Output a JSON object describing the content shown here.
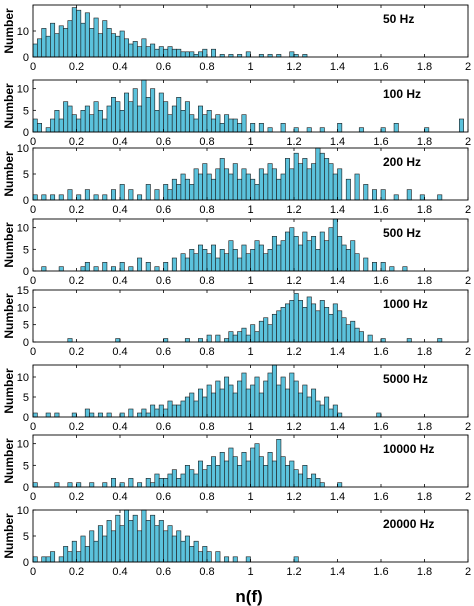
{
  "chart_data": {
    "type": "bar",
    "xlabel": "n(f)",
    "ylabel": "Number",
    "bin_width": 0.02,
    "colors": {
      "bar_fill": "#5bc2dc",
      "bar_edge": "#1a1a1a",
      "frame": "#000000"
    },
    "panels": [
      {
        "title": "50 Hz",
        "ylim": [
          0,
          20
        ],
        "yticks": [
          0,
          10
        ],
        "xlim": [
          0,
          2
        ],
        "xticks": [
          "0",
          "0.2",
          "0.4",
          "0.6",
          "0.8",
          "1",
          "1.2",
          "1.4",
          "1.6",
          "1.8",
          "2"
        ],
        "bin_starts": [
          0.0,
          0.02,
          0.04,
          0.06,
          0.08,
          0.1,
          0.12,
          0.14,
          0.16,
          0.18,
          0.2,
          0.22,
          0.24,
          0.26,
          0.28,
          0.3,
          0.32,
          0.34,
          0.36,
          0.38,
          0.4,
          0.42,
          0.44,
          0.46,
          0.48,
          0.5,
          0.52,
          0.54,
          0.56,
          0.58,
          0.6,
          0.62,
          0.64,
          0.66,
          0.68,
          0.7,
          0.72,
          0.74,
          0.76,
          0.78,
          0.82,
          0.86,
          0.9,
          0.94,
          0.98,
          1.04,
          1.08,
          1.12,
          1.18,
          1.2,
          1.24
        ],
        "counts": [
          5,
          7,
          11,
          8,
          13,
          9,
          12,
          11,
          14,
          19,
          18,
          13,
          17,
          11,
          15,
          9,
          14,
          11,
          9,
          8,
          10,
          7,
          5,
          6,
          4,
          7,
          4,
          5,
          3,
          4,
          3,
          4,
          3,
          3,
          2,
          2,
          2,
          1,
          2,
          3,
          3,
          1,
          1,
          1,
          2,
          1,
          1,
          1,
          2,
          1,
          1
        ]
      },
      {
        "title": "100 Hz",
        "ylim": [
          0,
          12
        ],
        "yticks": [
          0,
          5,
          10
        ],
        "xlim": [
          0,
          2
        ],
        "xticks": [
          "0",
          "0.2",
          "0.4",
          "0.6",
          "0.8",
          "1",
          "1.2",
          "1.4",
          "1.6",
          "1.8",
          "2"
        ],
        "bin_starts": [
          0.0,
          0.02,
          0.06,
          0.08,
          0.1,
          0.12,
          0.14,
          0.16,
          0.18,
          0.2,
          0.22,
          0.24,
          0.26,
          0.28,
          0.3,
          0.32,
          0.34,
          0.36,
          0.38,
          0.4,
          0.42,
          0.44,
          0.46,
          0.48,
          0.5,
          0.52,
          0.54,
          0.56,
          0.58,
          0.6,
          0.62,
          0.64,
          0.66,
          0.68,
          0.7,
          0.72,
          0.74,
          0.76,
          0.78,
          0.8,
          0.82,
          0.84,
          0.86,
          0.88,
          0.9,
          0.92,
          0.94,
          0.96,
          1.0,
          1.04,
          1.08,
          1.14,
          1.2,
          1.26,
          1.32,
          1.4,
          1.5,
          1.6,
          1.66,
          1.8,
          1.96
        ],
        "counts": [
          3,
          2,
          1,
          3,
          5,
          3,
          7,
          6,
          4,
          3,
          5,
          6,
          4,
          7,
          5,
          3,
          6,
          8,
          7,
          5,
          9,
          7,
          10,
          6,
          12,
          8,
          10,
          5,
          9,
          7,
          4,
          6,
          8,
          5,
          7,
          4,
          3,
          6,
          4,
          5,
          3,
          4,
          2,
          4,
          3,
          3,
          2,
          4,
          2,
          2,
          1,
          2,
          1,
          1,
          1,
          2,
          1,
          1,
          2,
          1,
          3
        ]
      },
      {
        "title": "200 Hz",
        "ylim": [
          0,
          10
        ],
        "yticks": [
          0,
          5,
          10
        ],
        "xlim": [
          0,
          2
        ],
        "xticks": [
          "0",
          "0.2",
          "0.4",
          "0.6",
          "0.8",
          "1",
          "1.2",
          "1.4",
          "1.6",
          "1.8",
          "2"
        ],
        "bin_starts": [
          0.0,
          0.04,
          0.08,
          0.12,
          0.16,
          0.2,
          0.24,
          0.28,
          0.32,
          0.36,
          0.4,
          0.44,
          0.48,
          0.52,
          0.56,
          0.6,
          0.62,
          0.64,
          0.66,
          0.68,
          0.7,
          0.72,
          0.74,
          0.76,
          0.78,
          0.8,
          0.82,
          0.84,
          0.86,
          0.88,
          0.9,
          0.92,
          0.94,
          0.96,
          0.98,
          1.0,
          1.02,
          1.04,
          1.06,
          1.08,
          1.1,
          1.12,
          1.14,
          1.16,
          1.18,
          1.2,
          1.22,
          1.24,
          1.26,
          1.28,
          1.3,
          1.32,
          1.34,
          1.36,
          1.38,
          1.4,
          1.44,
          1.48,
          1.52,
          1.56,
          1.6,
          1.66,
          1.72,
          1.78,
          1.86
        ],
        "counts": [
          1,
          1,
          1,
          1,
          2,
          1,
          2,
          1,
          1,
          2,
          3,
          2,
          1,
          3,
          2,
          3,
          2,
          4,
          3,
          5,
          4,
          3,
          6,
          5,
          7,
          5,
          4,
          6,
          8,
          6,
          5,
          7,
          4,
          6,
          5,
          4,
          3,
          6,
          5,
          7,
          6,
          4,
          5,
          8,
          6,
          9,
          7,
          8,
          6,
          7,
          10,
          9,
          8,
          7,
          5,
          6,
          4,
          5,
          3,
          2,
          2,
          1,
          2,
          1,
          1
        ]
      },
      {
        "title": "500 Hz",
        "ylim": [
          0,
          12
        ],
        "yticks": [
          0,
          5,
          10
        ],
        "xlim": [
          0,
          2
        ],
        "xticks": [
          "0",
          "0.2",
          "0.4",
          "0.6",
          "0.8",
          "1",
          "1.2",
          "1.4",
          "1.6",
          "1.8",
          "2"
        ],
        "bin_starts": [
          0.04,
          0.12,
          0.22,
          0.24,
          0.28,
          0.32,
          0.36,
          0.4,
          0.44,
          0.48,
          0.52,
          0.56,
          0.6,
          0.64,
          0.68,
          0.7,
          0.72,
          0.74,
          0.76,
          0.78,
          0.8,
          0.82,
          0.84,
          0.86,
          0.88,
          0.9,
          0.92,
          0.94,
          0.96,
          0.98,
          1.0,
          1.02,
          1.04,
          1.06,
          1.08,
          1.1,
          1.12,
          1.14,
          1.16,
          1.18,
          1.2,
          1.22,
          1.24,
          1.26,
          1.28,
          1.3,
          1.32,
          1.34,
          1.36,
          1.38,
          1.4,
          1.42,
          1.44,
          1.46,
          1.48,
          1.52,
          1.56,
          1.6,
          1.64,
          1.7
        ],
        "counts": [
          1,
          1,
          1,
          2,
          1,
          2,
          1,
          2,
          1,
          3,
          2,
          1,
          2,
          3,
          4,
          3,
          5,
          4,
          6,
          5,
          4,
          6,
          3,
          5,
          4,
          7,
          5,
          3,
          6,
          4,
          5,
          7,
          6,
          4,
          5,
          8,
          6,
          7,
          9,
          10,
          8,
          6,
          9,
          7,
          8,
          5,
          9,
          7,
          10,
          12,
          8,
          6,
          5,
          7,
          4,
          3,
          2,
          2,
          1,
          1
        ]
      },
      {
        "title": "1000 Hz",
        "ylim": [
          0,
          15
        ],
        "yticks": [
          0,
          5,
          10,
          15
        ],
        "xlim": [
          0,
          2
        ],
        "xticks": [
          "0",
          "0.2",
          "0.4",
          "0.6",
          "0.8",
          "1",
          "1.2",
          "1.4",
          "1.6",
          "1.8",
          "2"
        ],
        "bin_starts": [
          0.16,
          0.38,
          0.6,
          0.7,
          0.76,
          0.8,
          0.84,
          0.88,
          0.9,
          0.92,
          0.94,
          0.96,
          0.98,
          1.0,
          1.02,
          1.04,
          1.06,
          1.08,
          1.1,
          1.12,
          1.14,
          1.16,
          1.18,
          1.2,
          1.22,
          1.24,
          1.26,
          1.28,
          1.3,
          1.32,
          1.34,
          1.36,
          1.38,
          1.4,
          1.42,
          1.44,
          1.46,
          1.48,
          1.5,
          1.54,
          1.6,
          1.72,
          1.86
        ],
        "counts": [
          1,
          1,
          1,
          1,
          1,
          2,
          2,
          1,
          3,
          2,
          3,
          4,
          2,
          5,
          3,
          6,
          7,
          5,
          8,
          9,
          10,
          11,
          12,
          14,
          12,
          10,
          13,
          11,
          9,
          12,
          10,
          8,
          11,
          9,
          7,
          5,
          6,
          4,
          3,
          2,
          1,
          1,
          1
        ]
      },
      {
        "title": "5000 Hz",
        "ylim": [
          0,
          13
        ],
        "yticks": [
          0,
          5,
          10
        ],
        "xlim": [
          0,
          2
        ],
        "xticks": [
          "0",
          "0.2",
          "0.4",
          "0.6",
          "0.8",
          "1",
          "1.2",
          "1.4",
          "1.6",
          "1.8",
          "2"
        ],
        "bin_starts": [
          0.0,
          0.06,
          0.1,
          0.18,
          0.24,
          0.26,
          0.3,
          0.34,
          0.4,
          0.44,
          0.48,
          0.5,
          0.52,
          0.54,
          0.56,
          0.58,
          0.6,
          0.62,
          0.64,
          0.66,
          0.68,
          0.7,
          0.72,
          0.74,
          0.76,
          0.78,
          0.8,
          0.82,
          0.84,
          0.86,
          0.88,
          0.9,
          0.92,
          0.94,
          0.96,
          0.98,
          1.0,
          1.02,
          1.04,
          1.06,
          1.08,
          1.1,
          1.12,
          1.14,
          1.16,
          1.18,
          1.2,
          1.22,
          1.24,
          1.26,
          1.28,
          1.3,
          1.32,
          1.34,
          1.36,
          1.38,
          1.4,
          1.58
        ],
        "counts": [
          1,
          1,
          1,
          1,
          2,
          1,
          1,
          1,
          1,
          2,
          1,
          2,
          1,
          3,
          2,
          3,
          2,
          4,
          3,
          3,
          4,
          5,
          6,
          4,
          7,
          5,
          8,
          6,
          9,
          7,
          10,
          8,
          6,
          9,
          11,
          7,
          8,
          10,
          6,
          9,
          11,
          13,
          8,
          10,
          7,
          11,
          9,
          6,
          8,
          5,
          7,
          4,
          3,
          5,
          2,
          3,
          1,
          1
        ]
      },
      {
        "title": "10000 Hz",
        "ylim": [
          0,
          12
        ],
        "yticks": [
          0,
          5,
          10
        ],
        "xlim": [
          0,
          2
        ],
        "xticks": [
          "0",
          "0.2",
          "0.4",
          "0.6",
          "0.8",
          "1",
          "1.2",
          "1.4",
          "1.6",
          "1.8",
          "2"
        ],
        "bin_starts": [
          0.0,
          0.1,
          0.16,
          0.2,
          0.26,
          0.32,
          0.36,
          0.4,
          0.44,
          0.48,
          0.52,
          0.54,
          0.56,
          0.58,
          0.6,
          0.62,
          0.64,
          0.66,
          0.68,
          0.7,
          0.72,
          0.74,
          0.76,
          0.78,
          0.8,
          0.82,
          0.84,
          0.86,
          0.88,
          0.9,
          0.92,
          0.94,
          0.96,
          0.98,
          1.0,
          1.02,
          1.04,
          1.06,
          1.08,
          1.1,
          1.12,
          1.14,
          1.16,
          1.18,
          1.2,
          1.22,
          1.24,
          1.26,
          1.28,
          1.3,
          1.32,
          1.4
        ],
        "counts": [
          1,
          1,
          1,
          1,
          1,
          1,
          2,
          1,
          2,
          1,
          2,
          1,
          3,
          2,
          2,
          3,
          4,
          2,
          3,
          5,
          4,
          3,
          6,
          4,
          5,
          7,
          5,
          8,
          6,
          9,
          7,
          5,
          8,
          6,
          9,
          10,
          7,
          5,
          8,
          6,
          11,
          7,
          5,
          6,
          4,
          3,
          5,
          2,
          3,
          2,
          1,
          1
        ]
      },
      {
        "title": "20000 Hz",
        "ylim": [
          0,
          10
        ],
        "yticks": [
          0,
          5,
          10
        ],
        "xlim": [
          0,
          2
        ],
        "xticks": [
          "0",
          "0.2",
          "0.4",
          "0.6",
          "0.8",
          "1",
          "1.2",
          "1.4",
          "1.6",
          "1.8",
          "2"
        ],
        "bin_starts": [
          0.0,
          0.04,
          0.06,
          0.08,
          0.12,
          0.14,
          0.16,
          0.18,
          0.2,
          0.22,
          0.24,
          0.26,
          0.28,
          0.3,
          0.32,
          0.34,
          0.36,
          0.38,
          0.4,
          0.42,
          0.44,
          0.46,
          0.48,
          0.5,
          0.52,
          0.54,
          0.56,
          0.58,
          0.6,
          0.62,
          0.64,
          0.66,
          0.68,
          0.7,
          0.72,
          0.74,
          0.76,
          0.78,
          0.8,
          0.84,
          0.88,
          0.92,
          0.98,
          1.2
        ],
        "counts": [
          1,
          1,
          1,
          2,
          1,
          3,
          2,
          4,
          2,
          5,
          3,
          6,
          4,
          7,
          5,
          8,
          6,
          9,
          7,
          10,
          8,
          9,
          6,
          10,
          8,
          9,
          7,
          8,
          6,
          7,
          5,
          6,
          4,
          5,
          3,
          4,
          2,
          3,
          2,
          2,
          1,
          1,
          1,
          1
        ]
      }
    ]
  }
}
